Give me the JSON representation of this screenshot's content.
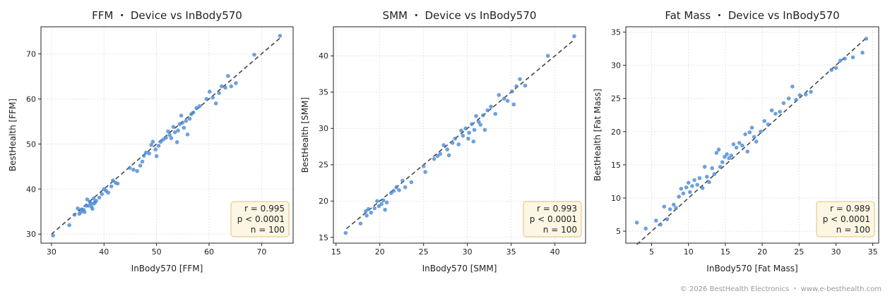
{
  "footer": "© 2026 BestHealth Electronics ・ www.e-besthealth.com",
  "colors": {
    "point": "#4a8ad4",
    "identity_line": "#444444",
    "stats_box_bg": "#fdf6e3",
    "stats_box_border": "#e0c27a",
    "grid": "#dddddd"
  },
  "chart_data": [
    {
      "type": "scatter",
      "title": "FFM ・ Device vs InBody570",
      "xlabel": "InBody570 [FFM]",
      "ylabel": "BestHealth [FFM]",
      "xlim": [
        28,
        76
      ],
      "ylim": [
        28,
        76
      ],
      "xticks": [
        30,
        40,
        50,
        60,
        70
      ],
      "yticks": [
        30,
        40,
        50,
        60,
        70
      ],
      "grid": true,
      "identity_line": [
        30,
        73.5
      ],
      "stats": [
        "r = 0.995",
        "p < 0.0001",
        "n = 100"
      ],
      "stats_placement": "bottom-right",
      "points": [
        [
          30.3,
          29.7
        ],
        [
          33.4,
          32.0
        ],
        [
          34.4,
          34.3
        ],
        [
          35.0,
          35.7
        ],
        [
          35.3,
          34.5
        ],
        [
          35.6,
          34.9
        ],
        [
          35.8,
          35.5
        ],
        [
          36.1,
          35.4
        ],
        [
          36.3,
          34.9
        ],
        [
          36.6,
          36.3
        ],
        [
          36.8,
          37.7
        ],
        [
          37.0,
          36.3
        ],
        [
          37.3,
          37.2
        ],
        [
          37.5,
          36.8
        ],
        [
          37.6,
          36.1
        ],
        [
          37.8,
          35.6
        ],
        [
          38.0,
          37.9
        ],
        [
          38.1,
          36.8
        ],
        [
          38.3,
          37.1
        ],
        [
          38.5,
          37.4
        ],
        [
          39.1,
          38.1
        ],
        [
          39.6,
          38.9
        ],
        [
          40.0,
          40.0
        ],
        [
          40.4,
          39.6
        ],
        [
          40.8,
          39.2
        ],
        [
          41.4,
          40.6
        ],
        [
          41.7,
          41.9
        ],
        [
          42.2,
          41.4
        ],
        [
          42.6,
          41.2
        ],
        [
          44.9,
          44.7
        ],
        [
          45.6,
          44.3
        ],
        [
          46.3,
          44.0
        ],
        [
          46.9,
          45.2
        ],
        [
          47.3,
          46.1
        ],
        [
          47.6,
          47.4
        ],
        [
          48.0,
          48.1
        ],
        [
          48.6,
          47.9
        ],
        [
          49.0,
          49.8
        ],
        [
          49.3,
          50.5
        ],
        [
          49.8,
          48.8
        ],
        [
          50.0,
          47.3
        ],
        [
          50.4,
          49.6
        ],
        [
          50.8,
          50.5
        ],
        [
          51.3,
          51.0
        ],
        [
          51.8,
          51.4
        ],
        [
          52.2,
          52.8
        ],
        [
          52.5,
          52.0
        ],
        [
          52.8,
          51.3
        ],
        [
          53.2,
          53.8
        ],
        [
          53.5,
          52.6
        ],
        [
          53.9,
          50.4
        ],
        [
          54.1,
          53.0
        ],
        [
          54.4,
          54.4
        ],
        [
          54.7,
          56.3
        ],
        [
          54.9,
          54.7
        ],
        [
          55.2,
          53.6
        ],
        [
          55.6,
          55.1
        ],
        [
          55.9,
          52.1
        ],
        [
          56.3,
          55.6
        ],
        [
          56.6,
          56.6
        ],
        [
          57.0,
          57.0
        ],
        [
          57.6,
          58.0
        ],
        [
          58.2,
          58.4
        ],
        [
          59.5,
          60.0
        ],
        [
          60.1,
          61.6
        ],
        [
          60.7,
          60.3
        ],
        [
          61.3,
          59.0
        ],
        [
          61.9,
          61.3
        ],
        [
          62.4,
          62.8
        ],
        [
          63.1,
          62.5
        ],
        [
          63.6,
          65.1
        ],
        [
          64.2,
          62.8
        ],
        [
          65.1,
          63.5
        ],
        [
          68.6,
          69.8
        ],
        [
          73.5,
          74.0
        ]
      ]
    },
    {
      "type": "scatter",
      "title": "SMM ・ Device vs InBody570",
      "xlabel": "InBody570 [SMM]",
      "ylabel": "BestHealth [SMM]",
      "xlim": [
        14.7,
        43.5
      ],
      "ylim": [
        14.2,
        44
      ],
      "xticks": [
        15,
        20,
        25,
        30,
        35,
        40
      ],
      "yticks": [
        15,
        20,
        25,
        30,
        35,
        40
      ],
      "grid": true,
      "identity_line": [
        16.2,
        42.2
      ],
      "stats": [
        "r = 0.993",
        "p < 0.0001",
        "n = 100"
      ],
      "stats_placement": "bottom-right",
      "points": [
        [
          16.1,
          15.6
        ],
        [
          17.8,
          16.9
        ],
        [
          18.4,
          18.6
        ],
        [
          18.5,
          18.0
        ],
        [
          18.7,
          18.9
        ],
        [
          19.0,
          18.4
        ],
        [
          19.4,
          19.0
        ],
        [
          19.7,
          20.0
        ],
        [
          19.9,
          19.3
        ],
        [
          20.2,
          19.6
        ],
        [
          20.4,
          20.1
        ],
        [
          20.6,
          18.8
        ],
        [
          20.8,
          19.8
        ],
        [
          21.3,
          21.1
        ],
        [
          21.6,
          21.4
        ],
        [
          21.9,
          21.9
        ],
        [
          22.2,
          21.5
        ],
        [
          22.6,
          22.8
        ],
        [
          22.9,
          21.9
        ],
        [
          23.6,
          22.6
        ],
        [
          25.0,
          24.8
        ],
        [
          25.2,
          24.0
        ],
        [
          26.2,
          25.8
        ],
        [
          26.6,
          26.2
        ],
        [
          26.9,
          26.5
        ],
        [
          27.3,
          27.7
        ],
        [
          27.7,
          27.1
        ],
        [
          27.9,
          26.3
        ],
        [
          28.3,
          28.0
        ],
        [
          28.6,
          28.6
        ],
        [
          29.0,
          27.8
        ],
        [
          29.3,
          29.7
        ],
        [
          29.5,
          29.0
        ],
        [
          29.8,
          30.0
        ],
        [
          30.1,
          28.6
        ],
        [
          30.2,
          29.4
        ],
        [
          30.5,
          30.6
        ],
        [
          30.7,
          28.2
        ],
        [
          30.8,
          29.8
        ],
        [
          31.0,
          31.7
        ],
        [
          31.3,
          30.9
        ],
        [
          31.5,
          30.5
        ],
        [
          31.8,
          31.8
        ],
        [
          32.0,
          29.8
        ],
        [
          32.3,
          32.5
        ],
        [
          32.7,
          33.0
        ],
        [
          33.2,
          32.0
        ],
        [
          33.6,
          34.6
        ],
        [
          34.2,
          34.1
        ],
        [
          34.6,
          33.8
        ],
        [
          35.1,
          35.1
        ],
        [
          35.3,
          33.3
        ],
        [
          35.6,
          35.8
        ],
        [
          36.0,
          36.8
        ],
        [
          36.6,
          35.9
        ],
        [
          39.2,
          40.0
        ],
        [
          42.2,
          42.7
        ]
      ]
    },
    {
      "type": "scatter",
      "title": "Fat Mass ・ Device vs InBody570",
      "xlabel": "InBody570 [Fat Mass]",
      "ylabel": "BestHealth [Fat Mass]",
      "xlim": [
        1.5,
        35.8
      ],
      "ylim": [
        3.2,
        35.8
      ],
      "xticks": [
        5,
        10,
        15,
        20,
        25,
        30,
        35
      ],
      "yticks": [
        5,
        10,
        15,
        20,
        25,
        30,
        35
      ],
      "grid": true,
      "identity_line": [
        3.0,
        34.2
      ],
      "stats": [
        "r = 0.989",
        "p < 0.0001",
        "n = 100"
      ],
      "stats_placement": "bottom-right",
      "points": [
        [
          3.0,
          6.3
        ],
        [
          4.2,
          5.4
        ],
        [
          5.6,
          6.6
        ],
        [
          6.2,
          6.0
        ],
        [
          6.7,
          8.7
        ],
        [
          7.1,
          6.8
        ],
        [
          7.5,
          8.3
        ],
        [
          8.0,
          9.0
        ],
        [
          8.3,
          8.5
        ],
        [
          8.7,
          10.2
        ],
        [
          9.0,
          11.4
        ],
        [
          9.3,
          10.7
        ],
        [
          9.7,
          11.6
        ],
        [
          10.0,
          12.3
        ],
        [
          10.2,
          10.9
        ],
        [
          10.5,
          11.8
        ],
        [
          10.8,
          12.7
        ],
        [
          11.2,
          12.0
        ],
        [
          11.5,
          13.0
        ],
        [
          11.9,
          11.5
        ],
        [
          12.2,
          14.7
        ],
        [
          12.5,
          13.2
        ],
        [
          12.8,
          12.4
        ],
        [
          13.2,
          14.5
        ],
        [
          13.5,
          13.6
        ],
        [
          13.8,
          16.8
        ],
        [
          14.1,
          17.3
        ],
        [
          14.3,
          14.7
        ],
        [
          14.6,
          15.4
        ],
        [
          14.9,
          16.2
        ],
        [
          15.2,
          16.6
        ],
        [
          15.5,
          16.0
        ],
        [
          15.8,
          16.4
        ],
        [
          16.1,
          18.1
        ],
        [
          16.5,
          17.6
        ],
        [
          16.9,
          18.3
        ],
        [
          17.3,
          17.9
        ],
        [
          17.7,
          19.6
        ],
        [
          18.0,
          17.0
        ],
        [
          18.3,
          19.9
        ],
        [
          18.6,
          20.6
        ],
        [
          18.9,
          19.2
        ],
        [
          19.2,
          18.5
        ],
        [
          19.8,
          20.0
        ],
        [
          20.3,
          21.6
        ],
        [
          20.8,
          21.1
        ],
        [
          21.3,
          23.2
        ],
        [
          21.8,
          22.7
        ],
        [
          22.4,
          23.0
        ],
        [
          22.9,
          24.3
        ],
        [
          23.6,
          25.0
        ],
        [
          24.1,
          26.8
        ],
        [
          24.6,
          24.8
        ],
        [
          25.1,
          25.5
        ],
        [
          25.9,
          25.6
        ],
        [
          26.6,
          26.0
        ],
        [
          29.4,
          29.3
        ],
        [
          30.0,
          29.6
        ],
        [
          30.6,
          30.7
        ],
        [
          31.2,
          31.0
        ],
        [
          32.3,
          31.2
        ],
        [
          33.6,
          31.9
        ],
        [
          34.1,
          34.0
        ]
      ]
    }
  ]
}
